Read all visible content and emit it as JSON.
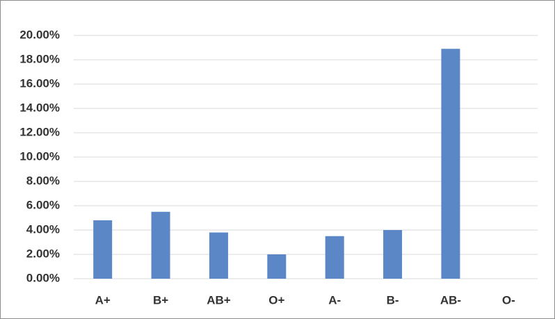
{
  "chart_data": {
    "type": "bar",
    "categories": [
      "A+",
      "B+",
      "AB+",
      "O+",
      "A-",
      "B-",
      "AB-",
      "O-"
    ],
    "values": [
      4.8,
      5.5,
      3.8,
      2.0,
      3.5,
      4.0,
      18.9,
      0
    ],
    "color": "#5b87c6",
    "ylim": [
      0,
      20
    ],
    "yticks": [
      {
        "value": 0,
        "label": "0.00%"
      },
      {
        "value": 2,
        "label": "2.00%"
      },
      {
        "value": 4,
        "label": "4.00%"
      },
      {
        "value": 6,
        "label": "6.00%"
      },
      {
        "value": 8,
        "label": "8.00%"
      },
      {
        "value": 10,
        "label": "10.00%"
      },
      {
        "value": 12,
        "label": "12.00%"
      },
      {
        "value": 14,
        "label": "14.00%"
      },
      {
        "value": 16,
        "label": "16.00%"
      },
      {
        "value": 18,
        "label": "18.00%"
      },
      {
        "value": 20,
        "label": "20.00%"
      }
    ],
    "grid": true
  }
}
